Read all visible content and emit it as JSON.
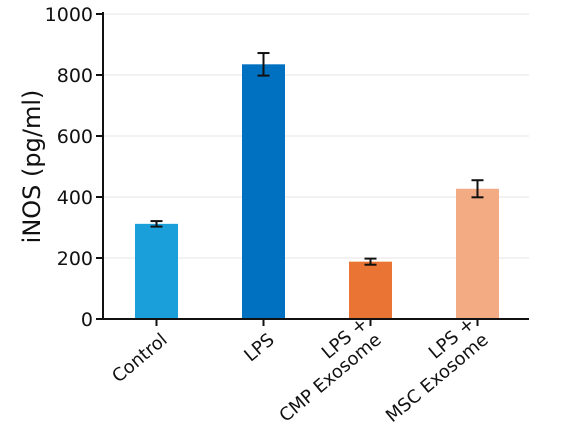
{
  "chart_data": {
    "type": "bar",
    "title": "",
    "xlabel": "",
    "ylabel": "iNOS (pg/ml)",
    "ylim": [
      0,
      1000
    ],
    "yticks": [
      0,
      200,
      400,
      600,
      800,
      1000
    ],
    "grid": true,
    "categories": [
      {
        "lines": [
          "Control"
        ]
      },
      {
        "lines": [
          "LPS"
        ]
      },
      {
        "lines": [
          "LPS +",
          "CMP Exosome"
        ]
      },
      {
        "lines": [
          "LPS +",
          "MSC Exosome"
        ]
      }
    ],
    "values": [
      312,
      835,
      188,
      427
    ],
    "errors": [
      9,
      37,
      10,
      28
    ],
    "colors": [
      "#1a9fdb",
      "#0070c0",
      "#ea7433",
      "#f3ab84"
    ]
  }
}
